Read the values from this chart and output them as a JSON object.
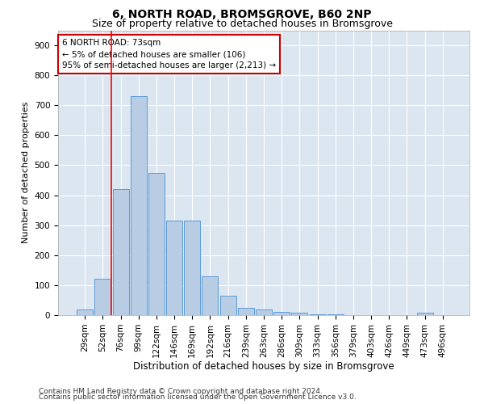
{
  "title1": "6, NORTH ROAD, BROMSGROVE, B60 2NP",
  "title2": "Size of property relative to detached houses in Bromsgrove",
  "xlabel": "Distribution of detached houses by size in Bromsgrove",
  "ylabel": "Number of detached properties",
  "categories": [
    "29sqm",
    "52sqm",
    "76sqm",
    "99sqm",
    "122sqm",
    "146sqm",
    "169sqm",
    "192sqm",
    "216sqm",
    "239sqm",
    "263sqm",
    "286sqm",
    "309sqm",
    "333sqm",
    "356sqm",
    "379sqm",
    "403sqm",
    "426sqm",
    "449sqm",
    "473sqm",
    "496sqm"
  ],
  "values": [
    20,
    120,
    420,
    730,
    475,
    315,
    315,
    130,
    65,
    25,
    20,
    10,
    8,
    3,
    2,
    1,
    1,
    0,
    0,
    8,
    0
  ],
  "bar_color": "#b8cce4",
  "bar_edge_color": "#5b9bd5",
  "annotation_line1": "6 NORTH ROAD: 73sqm",
  "annotation_line2": "← 5% of detached houses are smaller (106)",
  "annotation_line3": "95% of semi-detached houses are larger (2,213) →",
  "annotation_box_color": "#ffffff",
  "annotation_box_edge": "#cc0000",
  "ylim": [
    0,
    950
  ],
  "yticks": [
    0,
    100,
    200,
    300,
    400,
    500,
    600,
    700,
    800,
    900
  ],
  "background_color": "#dce6f1",
  "footer1": "Contains HM Land Registry data © Crown copyright and database right 2024.",
  "footer2": "Contains public sector information licensed under the Open Government Licence v3.0.",
  "title1_fontsize": 10,
  "title2_fontsize": 9,
  "xlabel_fontsize": 8.5,
  "ylabel_fontsize": 8,
  "tick_fontsize": 7.5,
  "annotation_fontsize": 7.5,
  "footer_fontsize": 6.5
}
